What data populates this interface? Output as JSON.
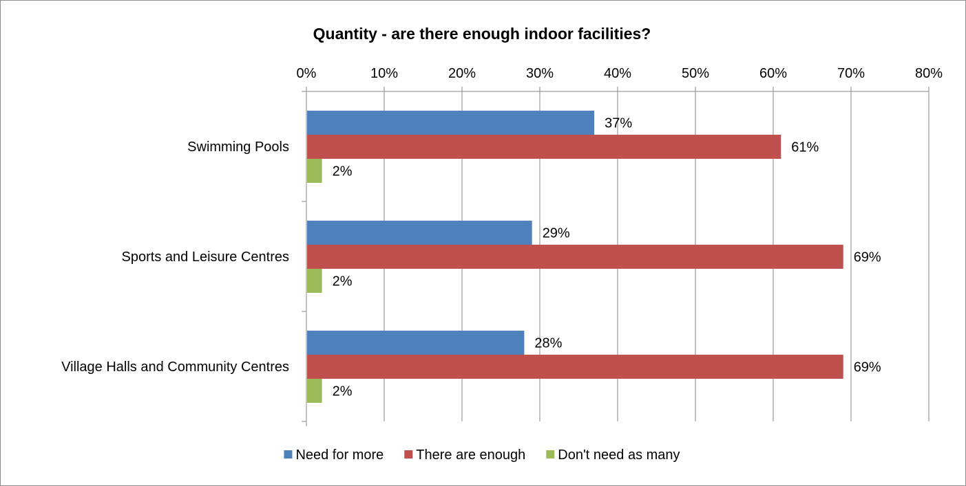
{
  "chart_data": {
    "type": "bar",
    "orientation": "horizontal",
    "title": "Quantity - are there enough indoor facilities?",
    "xlabel": "",
    "ylabel": "",
    "xlim": [
      0,
      80
    ],
    "x_ticks": [
      "0%",
      "10%",
      "20%",
      "30%",
      "40%",
      "50%",
      "60%",
      "70%",
      "80%"
    ],
    "x_axis_position": "top",
    "grid": true,
    "legend_position": "bottom",
    "categories": [
      "Swimming Pools",
      "Sports and Leisure Centres",
      "Village Halls and Community Centres"
    ],
    "series": [
      {
        "name": "Need for more",
        "color": "#4F81BD",
        "values": [
          37,
          29,
          28
        ],
        "labels": [
          "37%",
          "29%",
          "28%"
        ]
      },
      {
        "name": "There are enough",
        "color": "#C0504D",
        "values": [
          61,
          69,
          69
        ],
        "labels": [
          "61%",
          "69%",
          "69%"
        ]
      },
      {
        "name": "Don't need as many",
        "color": "#9BBB59",
        "values": [
          2,
          2,
          2
        ],
        "labels": [
          "2%",
          "2%",
          "2%"
        ]
      }
    ]
  }
}
